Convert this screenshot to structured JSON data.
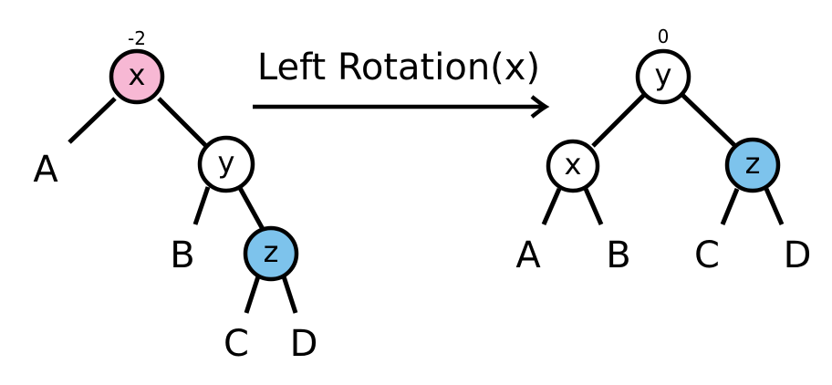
{
  "operation": {
    "label": "Left Rotation(x)"
  },
  "colors": {
    "highlight_unbalanced": "#f7b8d4",
    "highlight_moved": "#7dc3ec",
    "default_node": "#ffffff"
  },
  "before": {
    "balance_x": "-2",
    "node_x": "x",
    "node_y": "y",
    "node_z": "z",
    "leaf_a": "A",
    "leaf_b": "B",
    "leaf_c": "C",
    "leaf_d": "D"
  },
  "after": {
    "balance_y": "0",
    "node_y": "y",
    "node_x": "x",
    "node_z": "z",
    "leaf_a": "A",
    "leaf_b": "B",
    "leaf_c": "C",
    "leaf_d": "D"
  }
}
